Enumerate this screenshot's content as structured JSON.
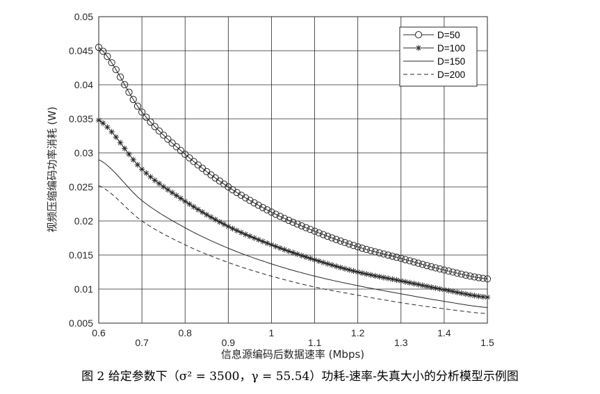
{
  "chart_data": {
    "type": "line",
    "xlabel": "信息源编码后数据速率 (Mbps)",
    "ylabel": "视频压缩编码功率消耗 (W)",
    "xlim": [
      0.6,
      1.5
    ],
    "ylim": [
      0.005,
      0.05
    ],
    "x_ticks": [
      0.6,
      0.7,
      0.8,
      0.9,
      1.0,
      1.1,
      1.2,
      1.3,
      1.4,
      1.5
    ],
    "x_tick_labels": [
      "0.6",
      "0.7",
      "0.8",
      "0.9",
      "1",
      "1.1",
      "1.2",
      "1.3",
      "1.4",
      "1.5"
    ],
    "y_ticks": [
      0.005,
      0.01,
      0.015,
      0.02,
      0.025,
      0.03,
      0.035,
      0.04,
      0.045,
      0.05
    ],
    "y_tick_labels": [
      "0.005",
      "0.01",
      "0.015",
      "0.02",
      "0.025",
      "0.03",
      "0.035",
      "0.04",
      "0.045",
      "0.05"
    ],
    "grid": true,
    "legend_position": "top-right",
    "x": [
      0.6,
      0.7,
      0.8,
      0.9,
      1.0,
      1.1,
      1.2,
      1.3,
      1.4,
      1.5
    ],
    "series": [
      {
        "name": "D=50",
        "marker": "circle",
        "line": "solid",
        "values": [
          0.0455,
          0.036,
          0.0298,
          0.025,
          0.0213,
          0.0185,
          0.0162,
          0.0145,
          0.0128,
          0.0115
        ]
      },
      {
        "name": "D=100",
        "marker": "star",
        "line": "solid",
        "values": [
          0.0348,
          0.0276,
          0.0229,
          0.0192,
          0.0165,
          0.0143,
          0.0125,
          0.0112,
          0.0099,
          0.0088
        ]
      },
      {
        "name": "D=150",
        "marker": "none",
        "line": "solid",
        "values": [
          0.029,
          0.023,
          0.019,
          0.016,
          0.0137,
          0.0119,
          0.0105,
          0.0093,
          0.0082,
          0.0073
        ]
      },
      {
        "name": "D=200",
        "marker": "none",
        "line": "dashed",
        "values": [
          0.0252,
          0.02,
          0.0165,
          0.0139,
          0.0119,
          0.0103,
          0.0091,
          0.008,
          0.0071,
          0.0064
        ]
      }
    ]
  },
  "caption": "图 2 给定参数下（σ² = 3500，γ = 55.54）功耗-速率-失真大小的分析模型示例图"
}
